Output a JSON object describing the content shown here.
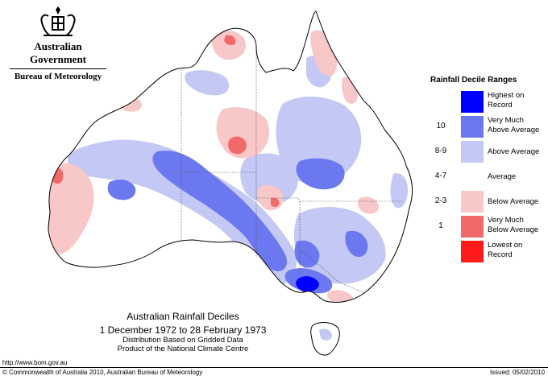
{
  "header": {
    "government": "Australian Government",
    "bureau": "Bureau of Meteorology"
  },
  "legend": {
    "title": "Rainfall Decile Ranges",
    "ranges": [
      {
        "code": "",
        "label_lines": [
          "Highest on",
          "Record"
        ],
        "color": "#0000ff"
      },
      {
        "code": "10",
        "label_lines": [
          "Very Much",
          "Above Average"
        ],
        "color": "#6b78ef"
      },
      {
        "code": "8-9",
        "label_lines": [
          "Above Average"
        ],
        "color": "#c3c8f5"
      },
      {
        "code": "4-7",
        "label_lines": [
          "Average"
        ],
        "color": "#ffffff"
      },
      {
        "code": "2-3",
        "label_lines": [
          "Below Average"
        ],
        "color": "#f8c7c7"
      },
      {
        "code": "1",
        "label_lines": [
          "Very Much",
          "Below Average"
        ],
        "color": "#f06a6a"
      },
      {
        "code": "",
        "label_lines": [
          "Lowest on",
          "Record"
        ],
        "color": "#ff1a1a"
      }
    ]
  },
  "caption": {
    "title": "Australian Rainfall Deciles",
    "period": "1 December 1972 to 28 February 1973",
    "note1": "Distribution Based on Gridded Data",
    "note2": "Product of the National Climate Centre"
  },
  "footer": {
    "url": "http://www.bom.gov.au",
    "copyright": "© Commonwealth of Australia 2010, Australian Bureau of Meteorology",
    "issued": "Issued: 05/02/2010"
  }
}
